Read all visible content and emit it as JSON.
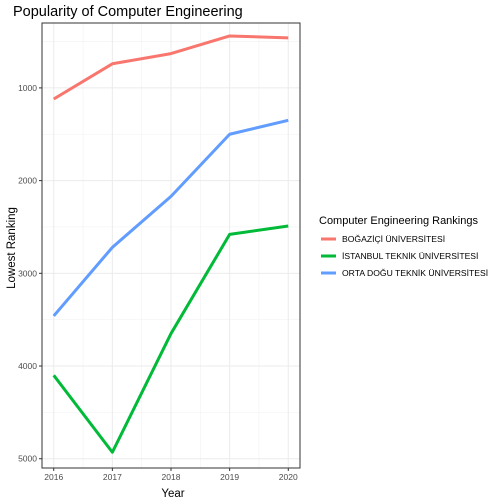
{
  "chart_data": {
    "type": "line",
    "title": "Popularity of Computer Engineering",
    "xlabel": "Year",
    "ylabel": "Lowest Ranking",
    "x": [
      2016,
      2017,
      2018,
      2019,
      2020
    ],
    "x_ticks": [
      "2016",
      "2017",
      "2018",
      "2019",
      "2020"
    ],
    "y_ticks": [
      1000,
      2000,
      3000,
      4000,
      5000
    ],
    "y_tick_labels": [
      "1000",
      "2000",
      "3000",
      "4000",
      "5000"
    ],
    "ylim": [
      5100,
      300
    ],
    "y_reversed": true,
    "grid": true,
    "legend_title": "Computer Engineering Rankings",
    "legend_position": "right",
    "series": [
      {
        "name": "BOĞAZİÇİ ÜNİVERSİTESİ",
        "color": "#F8766D",
        "values": [
          1120,
          740,
          630,
          440,
          460
        ]
      },
      {
        "name": "İSTANBUL TEKNİK ÜNİVERSİTESİ",
        "color": "#00BA38",
        "values": [
          4100,
          4930,
          3650,
          2580,
          2490
        ]
      },
      {
        "name": "ORTA DOĞU TEKNİK ÜNİVERSİTESİ",
        "color": "#619CFF",
        "values": [
          3460,
          2720,
          2170,
          1500,
          1350
        ]
      }
    ]
  }
}
